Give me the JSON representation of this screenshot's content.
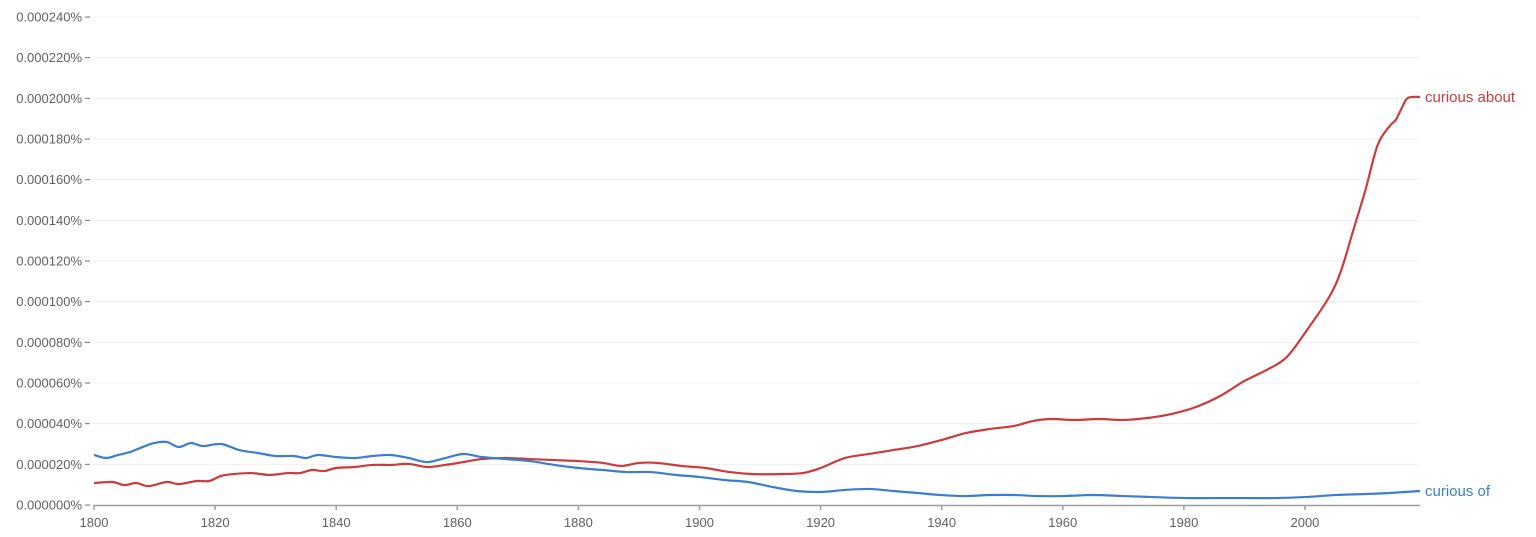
{
  "chart_data": {
    "type": "line",
    "title": "",
    "xlabel": "",
    "ylabel": "",
    "xlim": [
      1800,
      2019
    ],
    "ylim": [
      0,
      0.00024
    ],
    "grid": true,
    "legend": "inline labels at line ends (right)",
    "y_ticks": [
      "0.000000%",
      "0.000020%",
      "0.000040%",
      "0.000060%",
      "0.000080%",
      "0.000100%",
      "0.000120%",
      "0.000140%",
      "0.000160%",
      "0.000180%",
      "0.000200%",
      "0.000220%",
      "0.000240%"
    ],
    "x_ticks": [
      "1800",
      "1820",
      "1840",
      "1860",
      "1880",
      "1900",
      "1920",
      "1940",
      "1960",
      "1980",
      "2000"
    ],
    "series": [
      {
        "name": "curious about",
        "color": "#cc3b3b",
        "x": [
          1800,
          1803,
          1805,
          1807,
          1809,
          1812,
          1814,
          1817,
          1819,
          1821,
          1823,
          1826,
          1829,
          1832,
          1834,
          1836,
          1838,
          1840,
          1843,
          1846,
          1849,
          1852,
          1855,
          1858,
          1861,
          1864,
          1868,
          1872,
          1876,
          1880,
          1884,
          1887,
          1890,
          1893,
          1897,
          1901,
          1905,
          1909,
          1913,
          1917,
          1920,
          1924,
          1928,
          1932,
          1936,
          1940,
          1944,
          1948,
          1952,
          1955,
          1958,
          1962,
          1966,
          1970,
          1974,
          1978,
          1982,
          1986,
          1990,
          1994,
          1997,
          2000,
          2004,
          2006,
          2008,
          2010,
          2012,
          2014,
          2015,
          2016,
          2017,
          2019
        ],
        "y": [
          1.08e-05,
          1.13e-05,
          9.8e-06,
          1.08e-05,
          9.3e-06,
          1.13e-05,
          1.03e-05,
          1.18e-05,
          1.18e-05,
          1.43e-05,
          1.52e-05,
          1.57e-05,
          1.48e-05,
          1.57e-05,
          1.57e-05,
          1.72e-05,
          1.67e-05,
          1.82e-05,
          1.87e-05,
          1.97e-05,
          1.97e-05,
          2.02e-05,
          1.87e-05,
          1.97e-05,
          2.11e-05,
          2.26e-05,
          2.31e-05,
          2.26e-05,
          2.21e-05,
          2.16e-05,
          2.07e-05,
          1.92e-05,
          2.07e-05,
          2.07e-05,
          1.92e-05,
          1.82e-05,
          1.62e-05,
          1.52e-05,
          1.52e-05,
          1.57e-05,
          1.82e-05,
          2.31e-05,
          2.51e-05,
          2.7e-05,
          2.9e-05,
          3.2e-05,
          3.54e-05,
          3.74e-05,
          3.89e-05,
          4.13e-05,
          4.23e-05,
          4.18e-05,
          4.23e-05,
          4.18e-05,
          4.28e-05,
          4.48e-05,
          4.82e-05,
          5.36e-05,
          6.1e-05,
          6.69e-05,
          7.28e-05,
          8.46e-05,
          0.0001023,
          0.0001156,
          0.0001353,
          0.000155,
          0.000177,
          0.0001864,
          0.0001894,
          0.0001953,
          0.0002002,
          0.0002007
        ]
      },
      {
        "name": "curious of",
        "color": "#3b7fcc",
        "x": [
          1800,
          1802,
          1804,
          1806,
          1808,
          1810,
          1812,
          1814,
          1816,
          1818,
          1821,
          1824,
          1827,
          1830,
          1833,
          1835,
          1837,
          1840,
          1843,
          1846,
          1849,
          1852,
          1855,
          1858,
          1861,
          1864,
          1868,
          1872,
          1876,
          1880,
          1884,
          1888,
          1892,
          1896,
          1900,
          1904,
          1908,
          1912,
          1916,
          1920,
          1924,
          1928,
          1932,
          1936,
          1940,
          1944,
          1948,
          1952,
          1956,
          1960,
          1965,
          1970,
          1975,
          1980,
          1985,
          1990,
          1995,
          2000,
          2005,
          2010,
          2014,
          2019
        ],
        "y": [
          2.46e-05,
          2.31e-05,
          2.46e-05,
          2.61e-05,
          2.85e-05,
          3.05e-05,
          3.1e-05,
          2.85e-05,
          3.05e-05,
          2.9e-05,
          3e-05,
          2.7e-05,
          2.56e-05,
          2.41e-05,
          2.41e-05,
          2.31e-05,
          2.46e-05,
          2.36e-05,
          2.31e-05,
          2.41e-05,
          2.46e-05,
          2.31e-05,
          2.11e-05,
          2.31e-05,
          2.51e-05,
          2.36e-05,
          2.26e-05,
          2.16e-05,
          1.97e-05,
          1.82e-05,
          1.72e-05,
          1.62e-05,
          1.62e-05,
          1.48e-05,
          1.38e-05,
          1.23e-05,
          1.13e-05,
          8.9e-06,
          6.9e-06,
          6.4e-06,
          7.4e-06,
          7.9e-06,
          6.9e-06,
          5.9e-06,
          4.9e-06,
          4.4e-06,
          4.9e-06,
          4.9e-06,
          4.4e-06,
          4.4e-06,
          4.9e-06,
          4.4e-06,
          3.9e-06,
          3.4e-06,
          3.4e-06,
          3.4e-06,
          3.4e-06,
          3.9e-06,
          4.9e-06,
          5.4e-06,
          5.9e-06,
          6.9e-06
        ]
      }
    ]
  }
}
